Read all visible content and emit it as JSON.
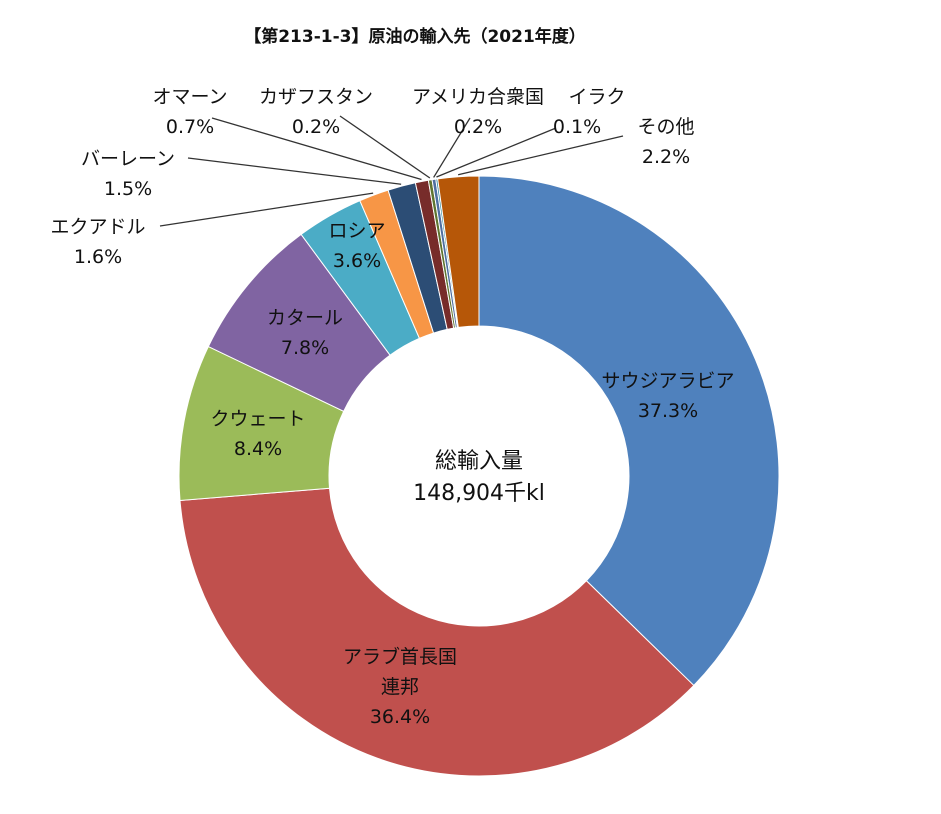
{
  "chart_data": {
    "type": "pie",
    "title": "【第213-1-3】原油の輸入先（2021年度）",
    "center_label": {
      "line1": "総輸入量",
      "line2": "148,904千kl"
    },
    "unit": "%",
    "donut": true,
    "start": "12 o'clock, clockwise",
    "slices": [
      {
        "name": "サウジアラビア",
        "value": 37.3,
        "label": "37.3%",
        "color": "#4F81BD"
      },
      {
        "name": "アラブ首長国連邦",
        "name_line1": "アラブ首長国",
        "name_line2": "連邦",
        "value": 36.4,
        "label": "36.4%",
        "color": "#C0504D"
      },
      {
        "name": "クウェート",
        "value": 8.4,
        "label": "8.4%",
        "color": "#9BBB59"
      },
      {
        "name": "カタール",
        "value": 7.8,
        "label": "7.8%",
        "color": "#8064A2"
      },
      {
        "name": "ロシア",
        "value": 3.6,
        "label": "3.6%",
        "color": "#4BACC6"
      },
      {
        "name": "エクアドル",
        "value": 1.6,
        "label": "1.6%",
        "color": "#F79646"
      },
      {
        "name": "バーレーン",
        "value": 1.5,
        "label": "1.5%",
        "color": "#2C4D75"
      },
      {
        "name": "オマーン",
        "value": 0.7,
        "label": "0.7%",
        "color": "#772C2A"
      },
      {
        "name": "カザフスタン",
        "value": 0.2,
        "label": "0.2%",
        "color": "#5F7530"
      },
      {
        "name": "アメリカ合衆国",
        "value": 0.2,
        "label": "0.2%",
        "color": "#4F6FA0"
      },
      {
        "name": "イラク",
        "value": 0.1,
        "label": "0.1%",
        "color": "#2E8A9C"
      },
      {
        "name": "その他",
        "value": 2.2,
        "label": "2.2%",
        "color": "#B65708"
      }
    ]
  }
}
